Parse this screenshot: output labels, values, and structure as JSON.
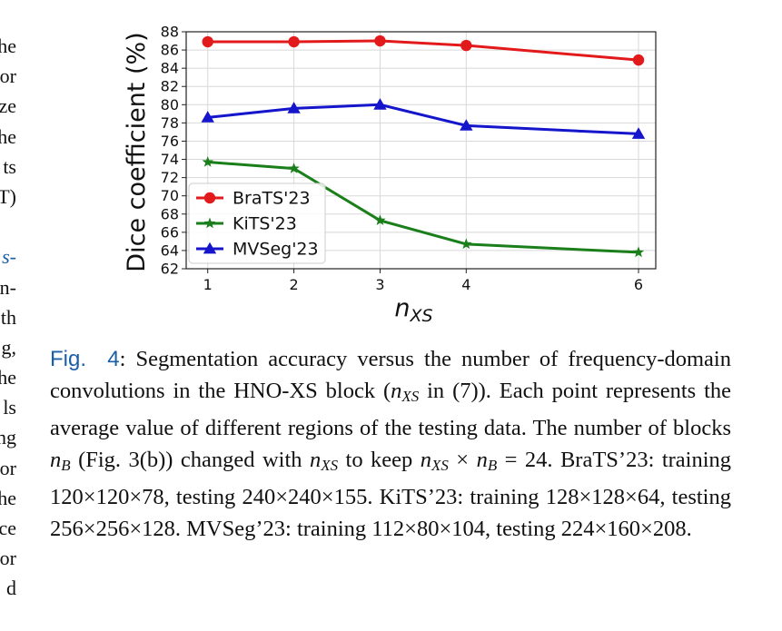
{
  "left_margin_fragments": [
    "he",
    "or",
    "ze",
    "he",
    "ts",
    "T)",
    "",
    "s-",
    "n-",
    "th",
    "g,",
    "he",
    "ls",
    "ng",
    "or",
    "he",
    "ce",
    "or",
    "d"
  ],
  "chart_data": {
    "type": "line",
    "x": [
      1,
      2,
      3,
      4,
      6
    ],
    "categories": [
      "1",
      "2",
      "3",
      "4",
      "6"
    ],
    "xlabel": "n_XS",
    "ylabel": "Dice coefficient (%)",
    "ylim": [
      62,
      88
    ],
    "yticks": [
      62,
      64,
      66,
      68,
      70,
      72,
      74,
      76,
      78,
      80,
      82,
      84,
      86,
      88
    ],
    "grid": true,
    "legend": "bottom-left",
    "series": [
      {
        "name": "BraTS'23",
        "values": [
          86.9,
          86.9,
          87.0,
          86.5,
          84.9
        ],
        "color": "#e31a1c",
        "marker": "circle"
      },
      {
        "name": "KiTS'23",
        "values": [
          73.7,
          73.0,
          67.3,
          64.7,
          63.8
        ],
        "color": "#1a7f1a",
        "marker": "star"
      },
      {
        "name": "MVSeg'23",
        "values": [
          78.6,
          79.6,
          80.0,
          77.7,
          76.8
        ],
        "color": "#1515cc",
        "marker": "triangle"
      }
    ]
  },
  "caption": {
    "fig_label": "Fig.",
    "fig_number": "4",
    "text_1": ": Segmentation accuracy versus the number of frequency-domain convolutions in the HNO-XS block (",
    "math_nxs_base": "n",
    "math_nxs_sub": "XS",
    "text_2": " in (7)). Each point represents the average value of different regions of the testing data. The number of blocks ",
    "math_nb_base": "n",
    "math_nb_sub": "B",
    "text_3": " (Fig. 3(b)) changed with ",
    "text_4": " to keep ",
    "text_5": " × ",
    "text_6": " = 24. BraTS’23: training 120×120×78, testing 240×240×155. KiTS’23: training 128×128×64, testing 256×256×128. MVSeg’23: training 112×80×104, testing 224×160×208."
  }
}
